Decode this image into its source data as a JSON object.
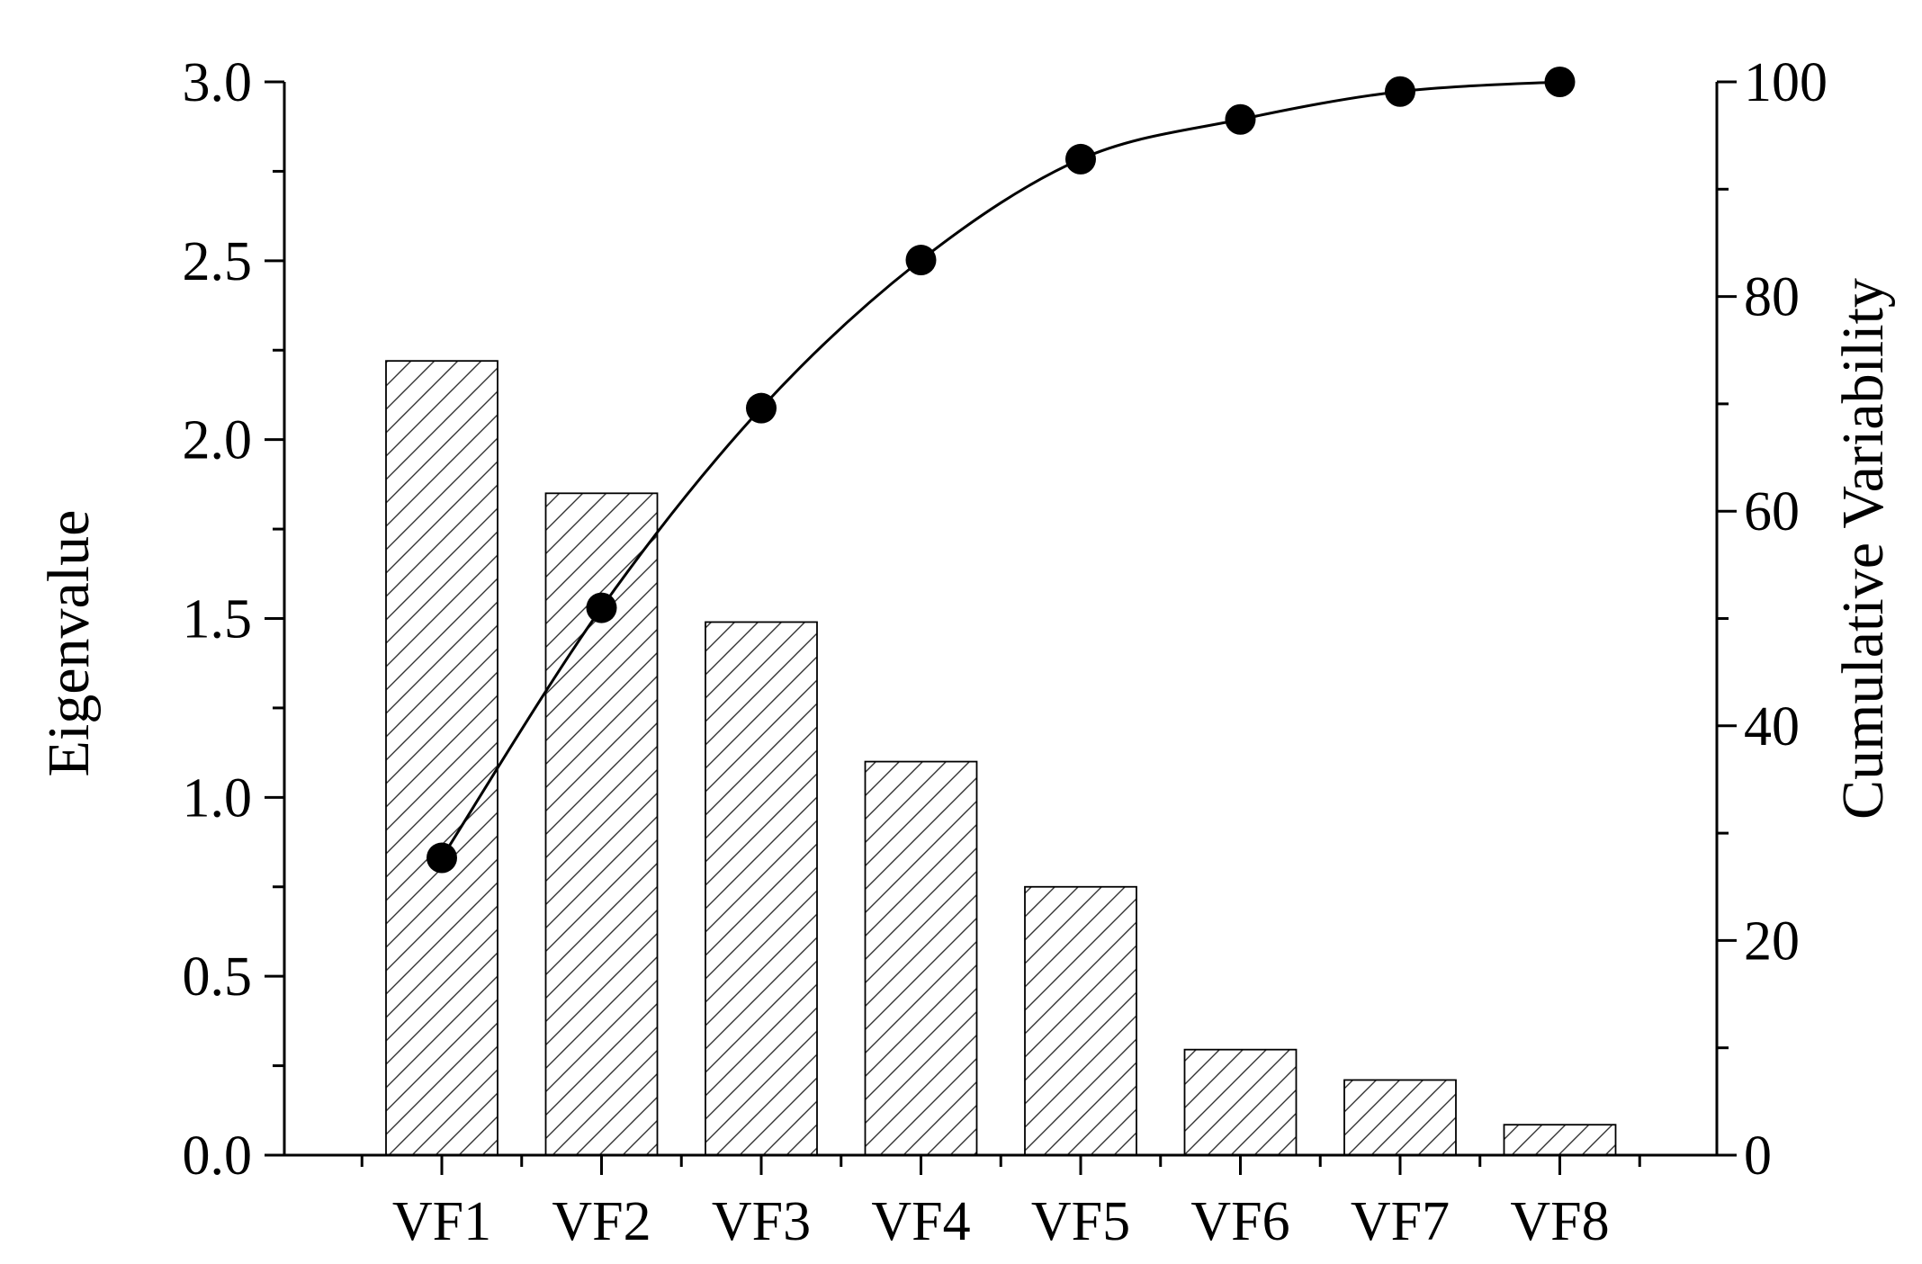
{
  "chart_data": {
    "type": "bar",
    "categories": [
      "VF1",
      "VF2",
      "VF3",
      "VF4",
      "VF5",
      "VF6",
      "VF7",
      "VF8"
    ],
    "series": [
      {
        "type": "bar",
        "axis": "left",
        "values": [
          2.22,
          1.85,
          1.49,
          1.1,
          0.75,
          0.295,
          0.21,
          0.085
        ],
        "pattern": "diagonal-hatch"
      },
      {
        "type": "line",
        "axis": "right",
        "marker": "filled-circle",
        "values": [
          27.7,
          51.0,
          69.6,
          83.4,
          92.8,
          96.5,
          99.1,
          100.0
        ]
      }
    ],
    "ylabel": "Eigenvalue",
    "y2label": "Cumulative Variability",
    "ylim": [
      0,
      3.0
    ],
    "y2lim": [
      0,
      100
    ],
    "yticks": [
      "0.0",
      "0.5",
      "1.0",
      "1.5",
      "2.0",
      "2.5",
      "3.0"
    ],
    "y2ticks": [
      "0",
      "20",
      "40",
      "60",
      "80",
      "100"
    ],
    "grid": false,
    "legend": "none",
    "colors": {
      "ink": "#000000",
      "background": "#ffffff"
    }
  }
}
